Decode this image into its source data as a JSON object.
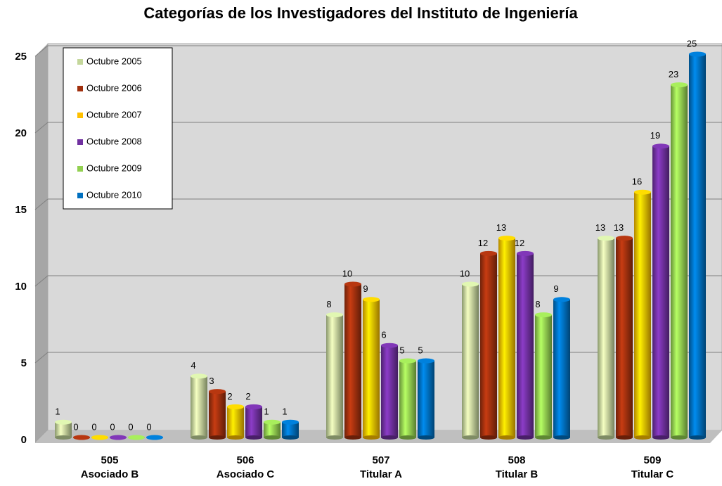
{
  "chart_data": {
    "type": "bar",
    "title": "Categorías de los Investigadores del Instituto de Ingeniería",
    "categories": [
      [
        "505",
        "Asociado B"
      ],
      [
        "506",
        "Asociado C"
      ],
      [
        "507",
        "Titular A"
      ],
      [
        "508",
        "Titular B"
      ],
      [
        "509",
        "Titular C"
      ]
    ],
    "series": [
      {
        "name": "Octubre 2005",
        "color": "#c4d79b",
        "values": [
          1,
          4,
          8,
          10,
          13
        ]
      },
      {
        "name": "Octubre 2006",
        "color": "#a0300e",
        "values": [
          0,
          3,
          10,
          12,
          13
        ]
      },
      {
        "name": "Octubre 2007",
        "color": "#ffc000",
        "values": [
          0,
          2,
          9,
          13,
          16
        ]
      },
      {
        "name": "Octubre 2008",
        "color": "#7030a0",
        "values": [
          0,
          2,
          6,
          12,
          19
        ]
      },
      {
        "name": "Octubre 2009",
        "color": "#92d050",
        "values": [
          0,
          1,
          5,
          8,
          23
        ]
      },
      {
        "name": "Octubre 2010",
        "color": "#0070c0",
        "values": [
          0,
          1,
          5,
          9,
          25
        ]
      }
    ],
    "ylim": [
      0,
      25
    ],
    "yticks": [
      0,
      5,
      10,
      15,
      20,
      25
    ],
    "grid": true,
    "legend": "upper left"
  }
}
